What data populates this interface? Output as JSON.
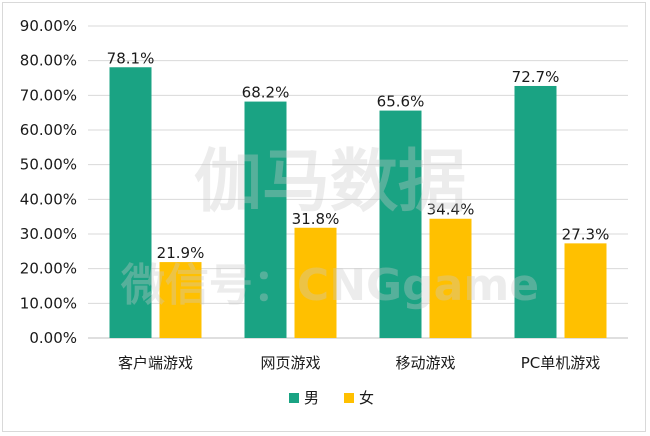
{
  "chart_data": {
    "type": "bar",
    "categories": [
      "客户端游戏",
      "网页游戏",
      "移动游戏",
      "PC单机游戏"
    ],
    "series": [
      {
        "name": "男",
        "color": "#1aa383",
        "values": [
          78.1,
          68.2,
          65.6,
          72.7
        ],
        "labels": [
          "78.1%",
          "68.2%",
          "65.6%",
          "72.7%"
        ]
      },
      {
        "name": "女",
        "color": "#ffc000",
        "values": [
          21.9,
          31.8,
          34.4,
          27.3
        ],
        "labels": [
          "21.9%",
          "31.8%",
          "34.4%",
          "27.3%"
        ]
      }
    ],
    "ylim": [
      0,
      90
    ],
    "yticks": [
      "0.00%",
      "10.00%",
      "20.00%",
      "30.00%",
      "40.00%",
      "50.00%",
      "60.00%",
      "70.00%",
      "80.00%",
      "90.00%"
    ],
    "grid": true,
    "legend_position": "bottom"
  },
  "watermark": {
    "line1": "伽马数据",
    "line2": "微信号：CNGgame"
  }
}
